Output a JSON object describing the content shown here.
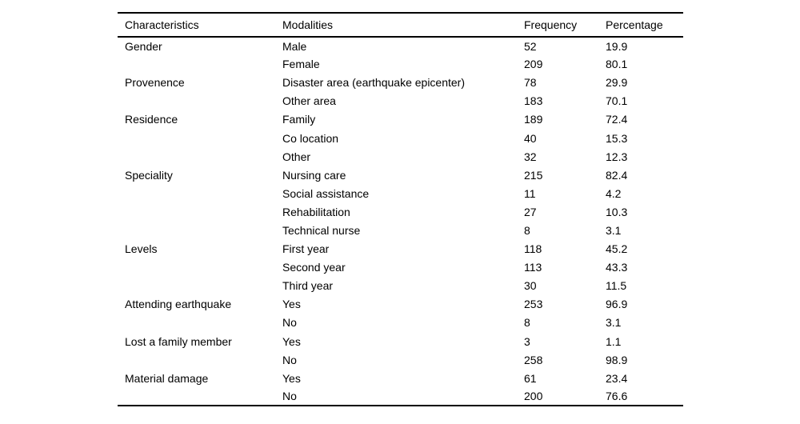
{
  "table": {
    "columns": [
      {
        "key": "characteristic",
        "label": "Characteristics"
      },
      {
        "key": "modality",
        "label": "Modalities"
      },
      {
        "key": "frequency",
        "label": "Frequency"
      },
      {
        "key": "percentage",
        "label": "Percentage"
      }
    ],
    "rows": [
      {
        "characteristic": "Gender",
        "modality": "Male",
        "frequency": "52",
        "percentage": "19.9"
      },
      {
        "characteristic": "",
        "modality": "Female",
        "frequency": "209",
        "percentage": "80.1"
      },
      {
        "characteristic": "Provenence",
        "modality": "Disaster area (earthquake epicenter)",
        "frequency": "78",
        "percentage": "29.9"
      },
      {
        "characteristic": "",
        "modality": "Other area",
        "frequency": "183",
        "percentage": "70.1"
      },
      {
        "characteristic": "Residence",
        "modality": "Family",
        "frequency": "189",
        "percentage": "72.4"
      },
      {
        "characteristic": "",
        "modality": "Co location",
        "frequency": "40",
        "percentage": "15.3"
      },
      {
        "characteristic": "",
        "modality": "Other",
        "frequency": "32",
        "percentage": "12.3"
      },
      {
        "characteristic": "Speciality",
        "modality": "Nursing care",
        "frequency": "215",
        "percentage": "82.4"
      },
      {
        "characteristic": "",
        "modality": "Social assistance",
        "frequency": "11",
        "percentage": "4.2"
      },
      {
        "characteristic": "",
        "modality": "Rehabilitation",
        "frequency": "27",
        "percentage": "10.3"
      },
      {
        "characteristic": "",
        "modality": "Technical nurse",
        "frequency": "8",
        "percentage": "3.1"
      },
      {
        "characteristic": "Levels",
        "modality": "First year",
        "frequency": "118",
        "percentage": "45.2"
      },
      {
        "characteristic": "",
        "modality": "Second year",
        "frequency": "113",
        "percentage": "43.3"
      },
      {
        "characteristic": "",
        "modality": "Third year",
        "frequency": "30",
        "percentage": "11.5"
      },
      {
        "characteristic": "Attending earthquake",
        "modality": "Yes",
        "frequency": "253",
        "percentage": "96.9"
      },
      {
        "characteristic": "",
        "modality": "No",
        "frequency": "8",
        "percentage": "3.1"
      },
      {
        "characteristic": "Lost a family member",
        "modality": "Yes",
        "frequency": "3",
        "percentage": "1.1"
      },
      {
        "characteristic": "",
        "modality": "No",
        "frequency": "258",
        "percentage": "98.9"
      },
      {
        "characteristic": "Material damage",
        "modality": "Yes",
        "frequency": "61",
        "percentage": "23.4"
      },
      {
        "characteristic": "",
        "modality": "No",
        "frequency": "200",
        "percentage": "76.6"
      }
    ]
  },
  "chart_data": {
    "type": "table",
    "title": "",
    "columns": [
      "Characteristics",
      "Modalities",
      "Frequency",
      "Percentage"
    ],
    "groups": [
      {
        "characteristic": "Gender",
        "modalities": [
          "Male",
          "Female"
        ],
        "frequencies": [
          52,
          209
        ],
        "percentages": [
          19.9,
          80.1
        ]
      },
      {
        "characteristic": "Provenence",
        "modalities": [
          "Disaster area (earthquake epicenter)",
          "Other area"
        ],
        "frequencies": [
          78,
          183
        ],
        "percentages": [
          29.9,
          70.1
        ]
      },
      {
        "characteristic": "Residence",
        "modalities": [
          "Family",
          "Co location",
          "Other"
        ],
        "frequencies": [
          189,
          40,
          32
        ],
        "percentages": [
          72.4,
          15.3,
          12.3
        ]
      },
      {
        "characteristic": "Speciality",
        "modalities": [
          "Nursing care",
          "Social assistance",
          "Rehabilitation",
          "Technical nurse"
        ],
        "frequencies": [
          215,
          11,
          27,
          8
        ],
        "percentages": [
          82.4,
          4.2,
          10.3,
          3.1
        ]
      },
      {
        "characteristic": "Levels",
        "modalities": [
          "First year",
          "Second year",
          "Third year"
        ],
        "frequencies": [
          118,
          113,
          30
        ],
        "percentages": [
          45.2,
          43.3,
          11.5
        ]
      },
      {
        "characteristic": "Attending earthquake",
        "modalities": [
          "Yes",
          "No"
        ],
        "frequencies": [
          253,
          8
        ],
        "percentages": [
          96.9,
          3.1
        ]
      },
      {
        "characteristic": "Lost a family member",
        "modalities": [
          "Yes",
          "No"
        ],
        "frequencies": [
          3,
          258
        ],
        "percentages": [
          1.1,
          98.9
        ]
      },
      {
        "characteristic": "Material damage",
        "modalities": [
          "Yes",
          "No"
        ],
        "frequencies": [
          61,
          200
        ],
        "percentages": [
          23.4,
          76.6
        ]
      }
    ]
  }
}
